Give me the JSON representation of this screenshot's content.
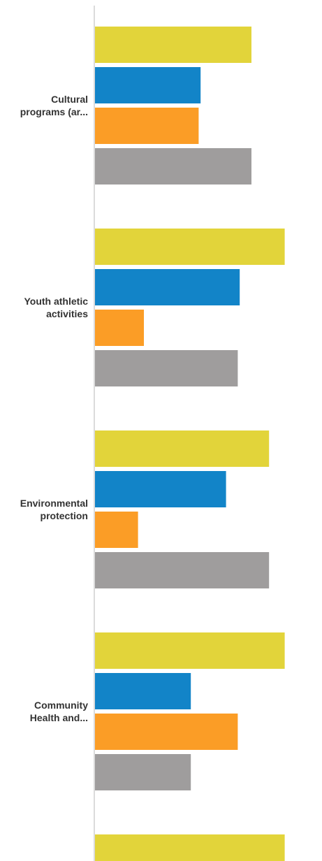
{
  "chart_data": {
    "type": "bar",
    "orientation": "horizontal",
    "title": "",
    "xlabel": "",
    "ylabel": "",
    "grid": false,
    "legend": "none",
    "categories": [
      [
        "Cultural",
        "programs (ar..."
      ],
      [
        "Youth athletic",
        "activities"
      ],
      [
        "Environmental",
        "protection"
      ],
      [
        "Community",
        "Health and..."
      ],
      [
        " "
      ]
    ],
    "xlim": [
      0,
      100
    ],
    "series": [
      {
        "color": "#E2D43A",
        "values": [
          80,
          97,
          89,
          97,
          97
        ]
      },
      {
        "color": "#1284C8",
        "values": [
          54,
          74,
          67,
          49,
          null
        ]
      },
      {
        "color": "#FB9D26",
        "values": [
          53,
          25,
          22,
          73,
          null
        ]
      },
      {
        "color": "#9F9D9D",
        "values": [
          80,
          73,
          89,
          49,
          null
        ]
      }
    ]
  }
}
